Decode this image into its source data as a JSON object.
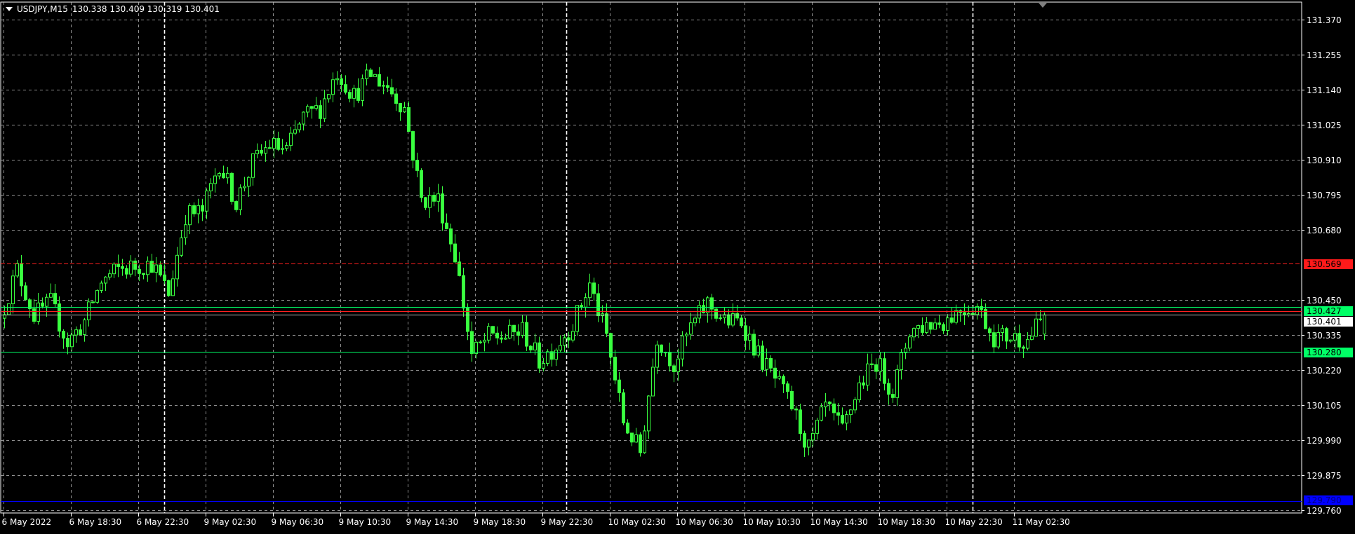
{
  "header": {
    "symbol": "USDJPY,M15",
    "ohlc": "130.338 130.409 130.319 130.401"
  },
  "colors": {
    "background": "#000000",
    "grid": "#c0c0c0",
    "candle": "#39ff3f",
    "resistance_line": "#ff2020",
    "ask_line": "#00ff66",
    "bid_line": "#c0c0c0",
    "support_line": "#00ff66",
    "low_line": "#0000ff"
  },
  "price_axis": {
    "ticks": [
      "131.370",
      "131.255",
      "131.140",
      "131.025",
      "130.910",
      "130.795",
      "130.680",
      "130.450",
      "130.335",
      "130.220",
      "130.105",
      "129.990",
      "129.875",
      "129.760"
    ]
  },
  "price_tags": [
    {
      "label": "130.569",
      "value": 130.569,
      "bg": "#ff1a1a",
      "line": "dashed"
    },
    {
      "label": "130.427",
      "value": 130.427,
      "bg": "#00ff66",
      "line": "solid"
    },
    {
      "label": "130.401",
      "value": 130.401,
      "bg": "#ffffff",
      "line": "solid"
    },
    {
      "label": "130.280",
      "value": 130.28,
      "bg": "#00ff66",
      "line": "solid"
    },
    {
      "label": "129.790",
      "value": 129.79,
      "bg": "#0000ff",
      "line": "solid"
    }
  ],
  "time_axis": {
    "ticks": [
      "6 May 2022",
      "6 May 18:30",
      "6 May 22:30",
      "9 May 02:30",
      "9 May 06:30",
      "9 May 10:30",
      "9 May 14:30",
      "9 May 18:30",
      "9 May 22:30",
      "10 May 02:30",
      "10 May 06:30",
      "10 May 10:30",
      "10 May 14:30",
      "10 May 18:30",
      "10 May 22:30",
      "11 May 02:30"
    ]
  },
  "chart_data": {
    "type": "candlestick",
    "timeframe": "M15",
    "ylim": [
      129.76,
      131.37
    ],
    "hourly_close": [
      130.39,
      130.55,
      130.4,
      130.44,
      130.31,
      130.38,
      130.51,
      130.55,
      130.56,
      130.57,
      130.47,
      130.73,
      130.74,
      130.9,
      130.77,
      130.9,
      130.96,
      130.94,
      131.05,
      131.08,
      131.2,
      131.12,
      131.19,
      131.15,
      131.08,
      130.78,
      130.78,
      130.6,
      130.27,
      130.33,
      130.33,
      130.35,
      130.25,
      130.3,
      130.37,
      130.5,
      130.33,
      130.05,
      129.95,
      130.33,
      130.24,
      130.36,
      130.44,
      130.38,
      130.38,
      130.27,
      130.19,
      130.1,
      129.96,
      130.1,
      130.02,
      130.17,
      130.25,
      130.15,
      130.35,
      130.37,
      130.38,
      130.42,
      130.43,
      130.33,
      130.33,
      130.32,
      130.4
    ],
    "last_bar": {
      "open": 130.338,
      "high": 130.409,
      "low": 130.319,
      "close": 130.401
    }
  }
}
